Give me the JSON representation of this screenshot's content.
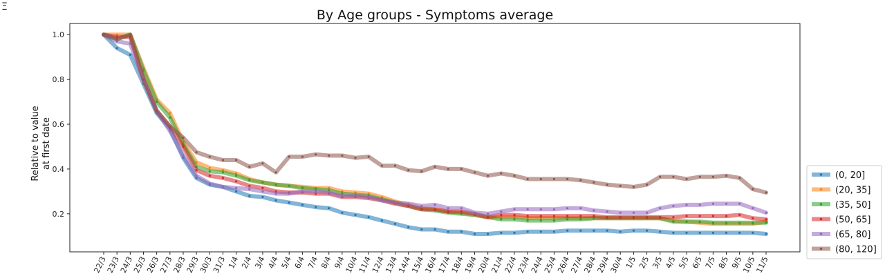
{
  "menu_glyph": "Ξ",
  "chart_data": {
    "type": "line",
    "title": "By Age groups - Symptoms average",
    "xlabel": "",
    "ylabel_lines": [
      "Relative to value",
      "at first date"
    ],
    "ylim": [
      0.03,
      1.05
    ],
    "yticks": [
      0.2,
      0.4,
      0.6,
      0.8,
      1.0
    ],
    "ytick_labels": [
      "0.2",
      "0.4",
      "0.6",
      "0.8",
      "1.0"
    ],
    "grid": false,
    "legend_position": "right, bottom",
    "categories": [
      "22/3",
      "23/3",
      "24/3",
      "25/3",
      "26/3",
      "27/3",
      "28/3",
      "29/3",
      "30/3",
      "31/3",
      "1/4",
      "2/4",
      "3/4",
      "4/4",
      "5/4",
      "6/4",
      "7/4",
      "8/4",
      "9/4",
      "10/4",
      "11/4",
      "12/4",
      "13/4",
      "14/4",
      "15/4",
      "16/4",
      "17/4",
      "18/4",
      "19/4",
      "20/4",
      "21/4",
      "22/4",
      "23/4",
      "24/4",
      "25/4",
      "26/4",
      "27/4",
      "28/4",
      "29/4",
      "30/4",
      "1/5",
      "2/5",
      "3/5",
      "4/5",
      "5/5",
      "6/5",
      "7/5",
      "8/5",
      "9/5",
      "10/5",
      "11/5"
    ],
    "series": [
      {
        "name": "(0, 20]",
        "color": "#1f77b4",
        "values": [
          1.0,
          0.94,
          0.91,
          0.78,
          0.65,
          0.58,
          0.45,
          0.36,
          0.33,
          0.32,
          0.3,
          0.28,
          0.275,
          0.26,
          0.25,
          0.24,
          0.23,
          0.225,
          0.205,
          0.195,
          0.185,
          0.17,
          0.155,
          0.14,
          0.13,
          0.13,
          0.12,
          0.12,
          0.11,
          0.11,
          0.115,
          0.115,
          0.12,
          0.12,
          0.12,
          0.125,
          0.125,
          0.125,
          0.125,
          0.12,
          0.125,
          0.125,
          0.12,
          0.115,
          0.115,
          0.115,
          0.115,
          0.115,
          0.115,
          0.115,
          0.11
        ]
      },
      {
        "name": "(20, 35]",
        "color": "#ff7f0e",
        "values": [
          1.0,
          1.0,
          1.0,
          0.85,
          0.71,
          0.65,
          0.52,
          0.43,
          0.405,
          0.395,
          0.38,
          0.355,
          0.34,
          0.33,
          0.325,
          0.32,
          0.315,
          0.315,
          0.3,
          0.295,
          0.29,
          0.275,
          0.255,
          0.24,
          0.225,
          0.22,
          0.21,
          0.205,
          0.195,
          0.185,
          0.185,
          0.185,
          0.18,
          0.18,
          0.18,
          0.18,
          0.18,
          0.18,
          0.18,
          0.18,
          0.18,
          0.18,
          0.18,
          0.17,
          0.165,
          0.16,
          0.155,
          0.155,
          0.155,
          0.155,
          0.165
        ]
      },
      {
        "name": "(35, 50]",
        "color": "#2ca02c",
        "values": [
          1.0,
          0.98,
          1.0,
          0.84,
          0.7,
          0.63,
          0.51,
          0.41,
          0.39,
          0.385,
          0.37,
          0.35,
          0.34,
          0.33,
          0.325,
          0.315,
          0.31,
          0.305,
          0.29,
          0.285,
          0.28,
          0.265,
          0.25,
          0.235,
          0.22,
          0.215,
          0.205,
          0.2,
          0.195,
          0.185,
          0.175,
          0.175,
          0.17,
          0.17,
          0.17,
          0.175,
          0.175,
          0.18,
          0.18,
          0.18,
          0.18,
          0.18,
          0.18,
          0.165,
          0.165,
          0.165,
          0.16,
          0.16,
          0.16,
          0.16,
          0.16
        ]
      },
      {
        "name": "(50, 65]",
        "color": "#d62728",
        "values": [
          1.0,
          0.99,
          0.99,
          0.8,
          0.66,
          0.59,
          0.5,
          0.395,
          0.37,
          0.36,
          0.345,
          0.325,
          0.315,
          0.3,
          0.295,
          0.295,
          0.29,
          0.29,
          0.275,
          0.275,
          0.27,
          0.26,
          0.245,
          0.235,
          0.22,
          0.22,
          0.21,
          0.21,
          0.2,
          0.185,
          0.195,
          0.195,
          0.19,
          0.19,
          0.19,
          0.19,
          0.19,
          0.19,
          0.185,
          0.185,
          0.185,
          0.185,
          0.185,
          0.185,
          0.19,
          0.19,
          0.19,
          0.19,
          0.195,
          0.18,
          0.175
        ]
      },
      {
        "name": "(65, 80]",
        "color": "#9467bd",
        "values": [
          1.0,
          0.97,
          0.96,
          0.8,
          0.66,
          0.57,
          0.46,
          0.37,
          0.335,
          0.32,
          0.315,
          0.31,
          0.3,
          0.29,
          0.29,
          0.3,
          0.3,
          0.295,
          0.28,
          0.28,
          0.275,
          0.26,
          0.25,
          0.245,
          0.235,
          0.24,
          0.225,
          0.225,
          0.205,
          0.2,
          0.21,
          0.22,
          0.22,
          0.22,
          0.22,
          0.225,
          0.225,
          0.215,
          0.21,
          0.205,
          0.205,
          0.205,
          0.225,
          0.235,
          0.24,
          0.24,
          0.245,
          0.245,
          0.245,
          0.225,
          0.205
        ]
      },
      {
        "name": "(80, 120]",
        "color": "#8c564b",
        "values": [
          1.0,
          0.98,
          1.0,
          0.8,
          0.66,
          0.59,
          0.54,
          0.475,
          0.455,
          0.44,
          0.44,
          0.41,
          0.425,
          0.385,
          0.455,
          0.455,
          0.465,
          0.46,
          0.46,
          0.45,
          0.455,
          0.415,
          0.415,
          0.395,
          0.39,
          0.41,
          0.4,
          0.4,
          0.385,
          0.37,
          0.38,
          0.37,
          0.355,
          0.355,
          0.355,
          0.355,
          0.35,
          0.34,
          0.33,
          0.325,
          0.32,
          0.33,
          0.365,
          0.365,
          0.355,
          0.365,
          0.365,
          0.37,
          0.36,
          0.31,
          0.295
        ]
      }
    ]
  }
}
